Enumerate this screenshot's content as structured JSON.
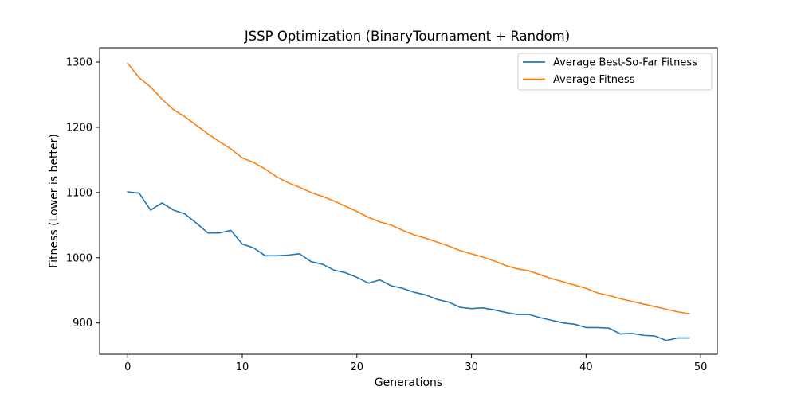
{
  "chart_data": {
    "type": "line",
    "title": "JSSP Optimization (BinaryTournament + Random)",
    "xlabel": "Generations",
    "ylabel": "Fitness (Lower is better)",
    "xlim": [
      -2.45,
      51.45
    ],
    "ylim": [
      852,
      1322
    ],
    "xticks": [
      0,
      10,
      20,
      30,
      40,
      50
    ],
    "yticks": [
      900,
      1000,
      1100,
      1200,
      1300
    ],
    "grid": false,
    "legend_position": "upper right",
    "x": [
      0,
      1,
      2,
      3,
      4,
      5,
      6,
      7,
      8,
      9,
      10,
      11,
      12,
      13,
      14,
      15,
      16,
      17,
      18,
      19,
      20,
      21,
      22,
      23,
      24,
      25,
      26,
      27,
      28,
      29,
      30,
      31,
      32,
      33,
      34,
      35,
      36,
      37,
      38,
      39,
      40,
      41,
      42,
      43,
      44,
      45,
      46,
      47,
      48,
      49
    ],
    "series": [
      {
        "name": "Average Best-So-Far Fitness",
        "color": "#1f77b4",
        "values": [
          1101,
          1099,
          1073,
          1084,
          1073,
          1067,
          1053,
          1038,
          1038,
          1042,
          1021,
          1015,
          1003,
          1003,
          1004,
          1006,
          994,
          990,
          981,
          977,
          970,
          961,
          966,
          957,
          953,
          947,
          943,
          936,
          932,
          924,
          922,
          923,
          920,
          916,
          913,
          913,
          908,
          904,
          900,
          898,
          893,
          893,
          892,
          883,
          884,
          881,
          880,
          873,
          877,
          877
        ]
      },
      {
        "name": "Average Fitness",
        "color": "#ff7f0e",
        "values": [
          1298,
          1276,
          1262,
          1243,
          1227,
          1216,
          1203,
          1190,
          1178,
          1167,
          1153,
          1146,
          1136,
          1124,
          1115,
          1108,
          1100,
          1094,
          1087,
          1079,
          1071,
          1062,
          1055,
          1050,
          1042,
          1035,
          1030,
          1024,
          1018,
          1011,
          1006,
          1001,
          995,
          988,
          983,
          980,
          974,
          968,
          963,
          958,
          953,
          946,
          942,
          937,
          933,
          929,
          925,
          921,
          917,
          914
        ]
      }
    ]
  }
}
